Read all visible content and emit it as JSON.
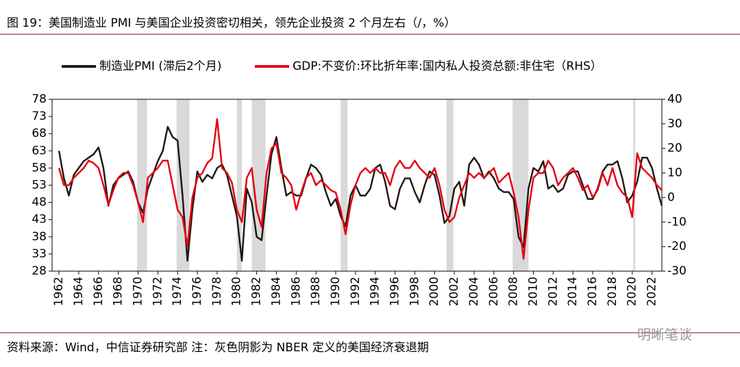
{
  "title": "图 19：美国制造业 PMI 与美国企业投资密切相关，领先企业投资 2 个月左右（/，%）",
  "chart_data": {
    "type": "line",
    "x": [
      1962,
      1962.5,
      1963,
      1963.5,
      1964,
      1964.5,
      1965,
      1965.5,
      1966,
      1966.5,
      1967,
      1967.5,
      1968,
      1968.5,
      1969,
      1969.5,
      1970,
      1970.5,
      1971,
      1971.5,
      1972,
      1972.5,
      1973,
      1973.5,
      1974,
      1974.5,
      1975,
      1975.5,
      1976,
      1976.5,
      1977,
      1977.5,
      1978,
      1978.5,
      1979,
      1979.5,
      1980,
      1980.5,
      1981,
      1981.5,
      1982,
      1982.5,
      1983,
      1983.5,
      1984,
      1984.5,
      1985,
      1985.5,
      1986,
      1986.5,
      1987,
      1987.5,
      1988,
      1988.5,
      1989,
      1989.5,
      1990,
      1990.5,
      1991,
      1991.5,
      1992,
      1992.5,
      1993,
      1993.5,
      1994,
      1994.5,
      1995,
      1995.5,
      1996,
      1996.5,
      1997,
      1997.5,
      1998,
      1998.5,
      1999,
      1999.5,
      2000,
      2000.5,
      2001,
      2001.5,
      2002,
      2002.5,
      2003,
      2003.5,
      2004,
      2004.5,
      2005,
      2005.5,
      2006,
      2006.5,
      2007,
      2007.5,
      2008,
      2008.5,
      2009,
      2009.5,
      2010,
      2010.5,
      2011,
      2011.5,
      2012,
      2012.5,
      2013,
      2013.5,
      2014,
      2014.5,
      2015,
      2015.5,
      2016,
      2016.5,
      2017,
      2017.5,
      2018,
      2018.5,
      2019,
      2019.5,
      2020,
      2020.5,
      2021,
      2021.5,
      2022,
      2022.5,
      2023
    ],
    "series": [
      {
        "name": "制造业PMI (滞后2个月)",
        "color": "#231815",
        "axis": "y",
        "values": [
          63,
          55,
          50,
          56,
          58,
          60,
          61,
          62,
          64,
          58,
          47,
          53,
          55,
          56,
          57,
          54,
          48,
          45,
          52,
          56,
          60,
          63,
          70,
          67,
          66,
          50,
          31,
          46,
          57,
          54,
          56,
          55,
          58,
          59,
          56,
          50,
          44,
          31,
          52,
          48,
          38,
          37,
          50,
          62,
          67,
          58,
          50,
          51,
          50,
          50,
          55,
          59,
          58,
          56,
          51,
          47,
          49,
          44,
          41,
          50,
          53,
          50,
          50,
          52,
          58,
          59,
          54,
          47,
          46,
          52,
          55,
          55,
          51,
          48,
          53,
          57,
          56,
          50,
          42,
          44,
          52,
          54,
          47,
          59,
          61,
          59,
          55,
          57,
          55,
          52,
          51,
          51,
          49,
          38,
          35,
          52,
          58,
          57,
          60,
          52,
          53,
          51,
          52,
          56,
          57,
          57,
          53,
          49,
          49,
          52,
          57,
          59,
          59,
          60,
          55,
          48,
          50,
          54,
          61,
          61,
          58,
          52,
          47
        ]
      },
      {
        "name": "GDP:不变价:环比折年率:国内私人投资总额:非住宅（RHS）",
        "color": "#e60012",
        "axis": "y2",
        "values": [
          12,
          5,
          5,
          8,
          10,
          12,
          15,
          14,
          12,
          5,
          -3,
          3,
          8,
          10,
          10,
          5,
          -2,
          -10,
          8,
          10,
          12,
          15,
          15,
          5,
          -5,
          -8,
          -20,
          0,
          8,
          10,
          14,
          16,
          32,
          12,
          10,
          6,
          -5,
          -10,
          8,
          12,
          -5,
          -12,
          10,
          20,
          22,
          10,
          8,
          5,
          -5,
          2,
          8,
          10,
          5,
          7,
          5,
          3,
          2,
          -5,
          -15,
          -3,
          5,
          10,
          12,
          10,
          12,
          10,
          10,
          5,
          12,
          15,
          12,
          12,
          15,
          12,
          10,
          8,
          12,
          5,
          -5,
          -10,
          -8,
          0,
          5,
          10,
          8,
          10,
          8,
          10,
          12,
          6,
          8,
          10,
          2,
          -8,
          -25,
          -5,
          8,
          10,
          10,
          15,
          12,
          5,
          8,
          10,
          12,
          8,
          3,
          5,
          0,
          3,
          10,
          5,
          12,
          5,
          2,
          0,
          -8,
          18,
          12,
          10,
          8,
          5,
          3
        ]
      }
    ],
    "recessions": [
      [
        1969.9,
        1970.9
      ],
      [
        1973.9,
        1975.2
      ],
      [
        1980.0,
        1980.5
      ],
      [
        1981.5,
        1982.9
      ],
      [
        1990.5,
        1991.2
      ],
      [
        2001.2,
        2001.9
      ],
      [
        2007.9,
        2009.5
      ],
      [
        2020.1,
        2020.3
      ]
    ],
    "xlim": [
      1961.3,
      2023.0
    ],
    "xticks": [
      1962,
      1964,
      1966,
      1968,
      1970,
      1972,
      1974,
      1976,
      1978,
      1980,
      1982,
      1984,
      1986,
      1988,
      1990,
      1992,
      1994,
      1996,
      1998,
      2000,
      2002,
      2004,
      2006,
      2008,
      2010,
      2012,
      2014,
      2016,
      2018,
      2020,
      2022
    ],
    "ylim": [
      28,
      78
    ],
    "yticks": [
      28,
      33,
      38,
      43,
      48,
      53,
      58,
      63,
      68,
      73,
      78
    ],
    "y2lim": [
      -30,
      40
    ],
    "y2ticks": [
      -30,
      -20,
      -10,
      0,
      10,
      20,
      30,
      40
    ]
  },
  "source": "资料来源：Wind，中信证券研究部  注：灰色阴影为 NBER 定义的美国经济衰退期",
  "watermark": "明晰笔谈"
}
